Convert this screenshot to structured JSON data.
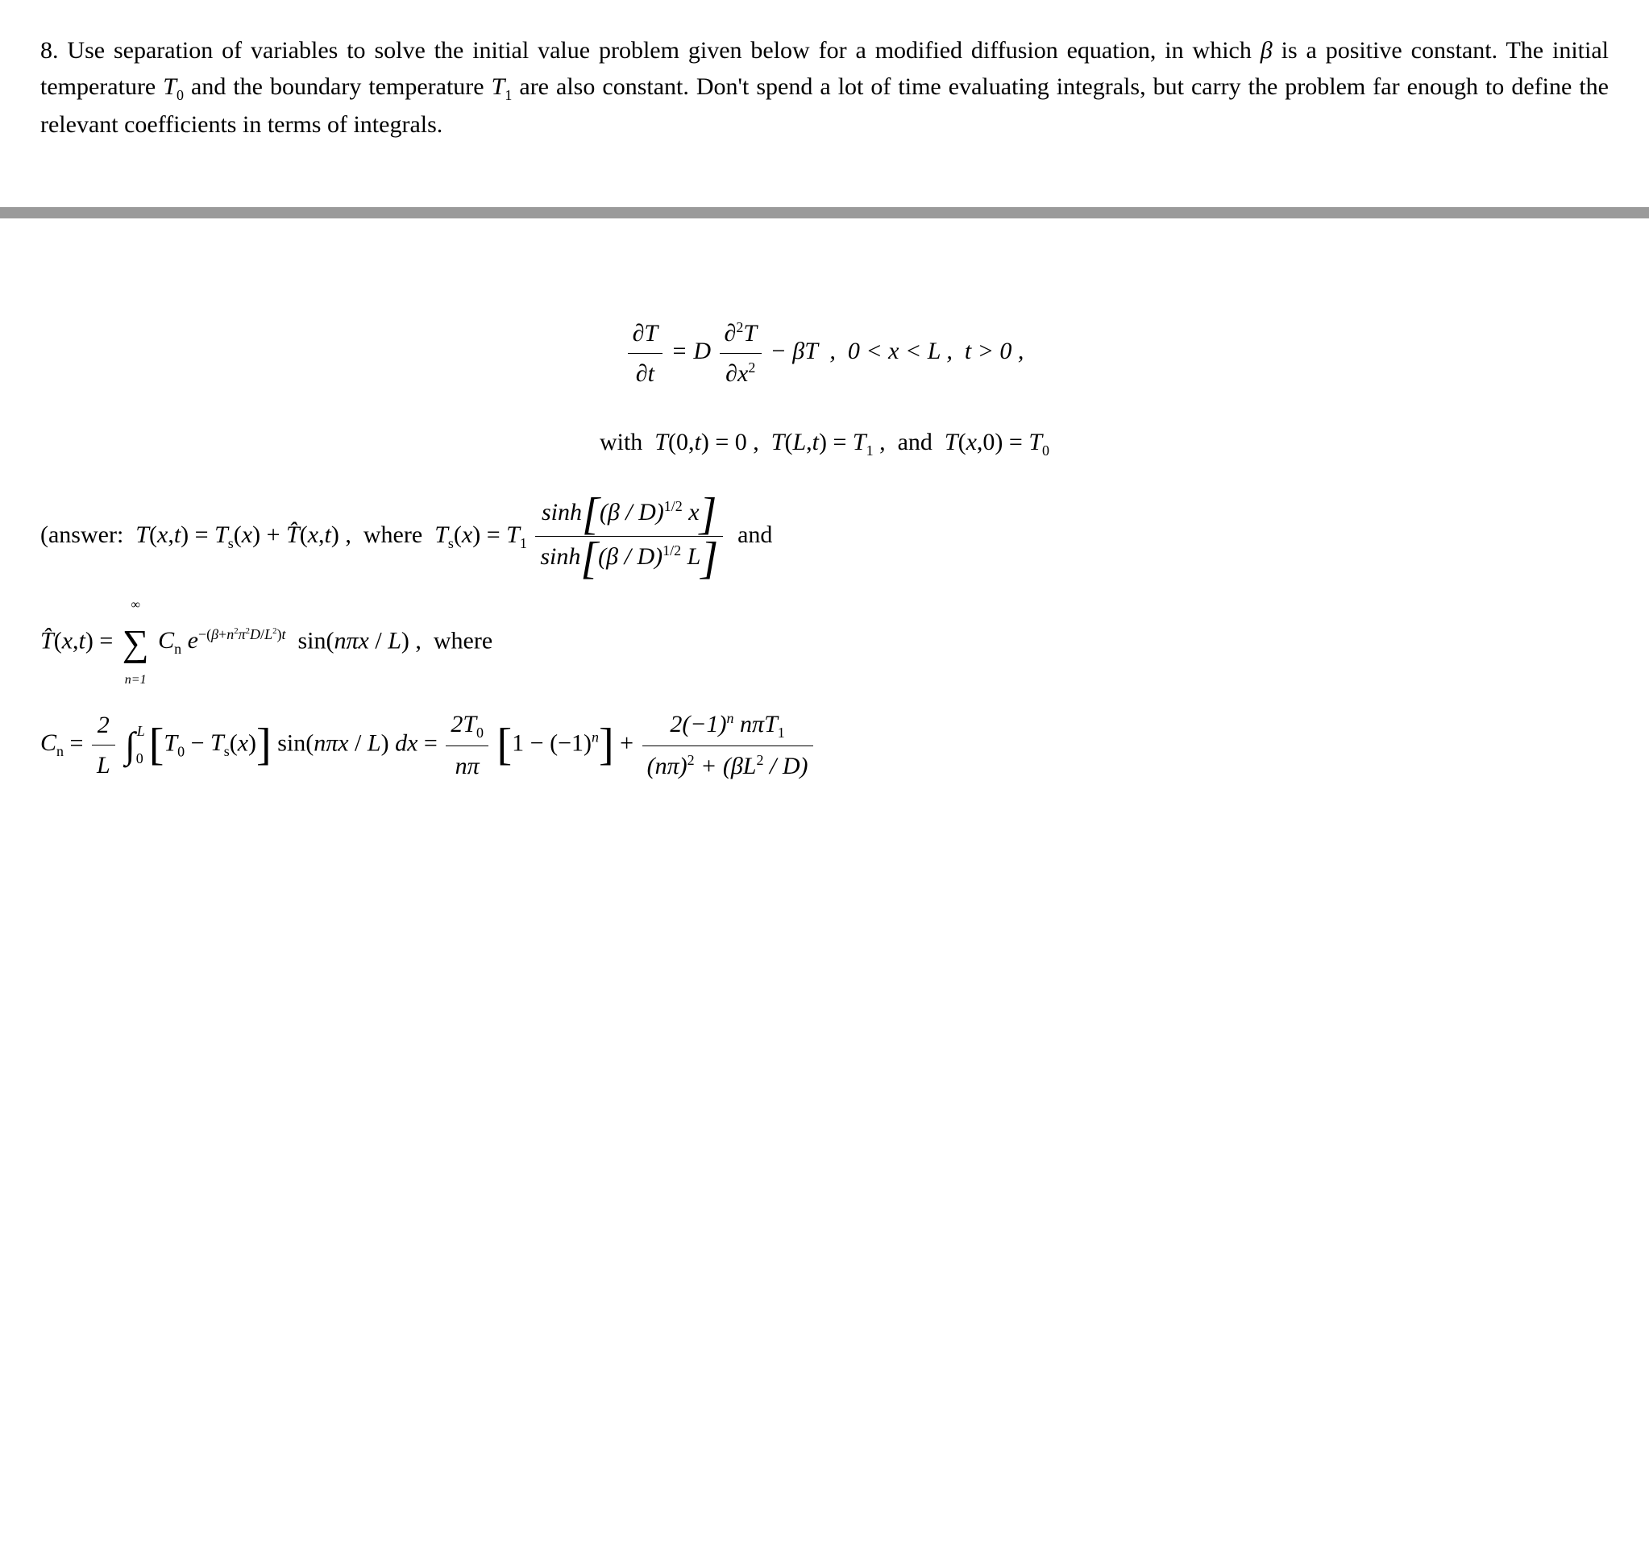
{
  "problem": {
    "number": "8.",
    "text_1": "Use separation of variables to solve the initial value problem given below for a modified diffusion equation, in which ",
    "beta": "β",
    "text_2": " is a positive constant. The initial temperature ",
    "T0": "T",
    "T0_sub": "0",
    "text_3": " and the boundary temperature ",
    "T1": "T",
    "T1_sub": "1",
    "text_4": " are also constant. Don't spend a lot of time evaluating integrals, but carry the problem far enough to define the relevant coefficients in terms of integrals."
  },
  "equations": {
    "pde": "∂T/∂t = D ∂²T/∂x² − βT ,  0 < x < L ,  t > 0,",
    "bc_ic": "with  T(0,t) = 0 ,  T(L,t) = T₁ ,  and  T(x,0) = T₀",
    "answer_prefix": "(answer:",
    "Ts_label": "where",
    "and": "and",
    "That_eq": "T̂(x,t) = Σ Cₙ e^{−(β+n²π²D/L²)t} sin(nπx/L), where",
    "Cn_eq": "Cₙ = (2/L) ∫₀ᴸ [T₀ − Tₛ(x)] sin(nπx/L) dx = (2T₀/nπ)[1−(−1)ⁿ] + 2(−1)ⁿ nπT₁ / ((nπ)² + (βL²/D))"
  },
  "style": {
    "font_size_body": 30,
    "font_family": "Georgia, Times New Roman, serif",
    "text_color": "#000000",
    "background_color": "#ffffff",
    "divider_color": "#9a9a9a",
    "divider_height": 14,
    "line_height": 1.5,
    "equation_font_size": 30,
    "italic_for_math": true
  }
}
